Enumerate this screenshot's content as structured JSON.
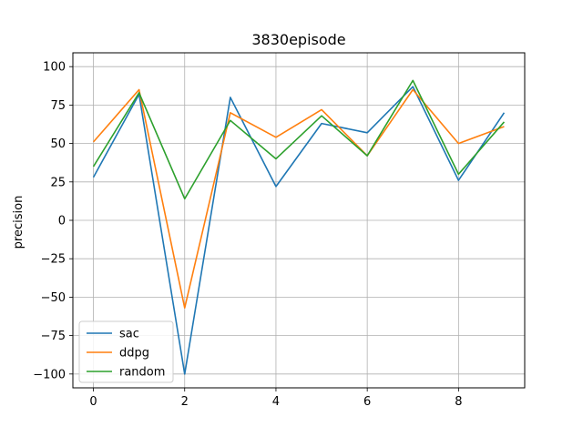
{
  "chart_data": {
    "type": "line",
    "title": "3830episode",
    "xlabel": "",
    "ylabel": "precision",
    "x": [
      0,
      1,
      2,
      3,
      4,
      5,
      6,
      7,
      8,
      9
    ],
    "xlim": [
      -0.45,
      9.45
    ],
    "ylim": [
      -109,
      109
    ],
    "xticks": [
      0,
      2,
      4,
      6,
      8
    ],
    "yticks": [
      -100,
      -75,
      -50,
      -25,
      0,
      25,
      50,
      75,
      100
    ],
    "grid": true,
    "legend_position": "lower-left",
    "series": [
      {
        "name": "sac",
        "color": "#1f77b4",
        "values": [
          28,
          82,
          -100,
          80,
          22,
          63,
          57,
          87,
          26,
          70
        ]
      },
      {
        "name": "ddpg",
        "color": "#ff7f0e",
        "values": [
          51,
          85,
          -57,
          70,
          54,
          72,
          42,
          85,
          50,
          61
        ]
      },
      {
        "name": "random",
        "color": "#2ca02c",
        "values": [
          35,
          83,
          14,
          65,
          40,
          68,
          42,
          91,
          30,
          64
        ]
      }
    ]
  }
}
